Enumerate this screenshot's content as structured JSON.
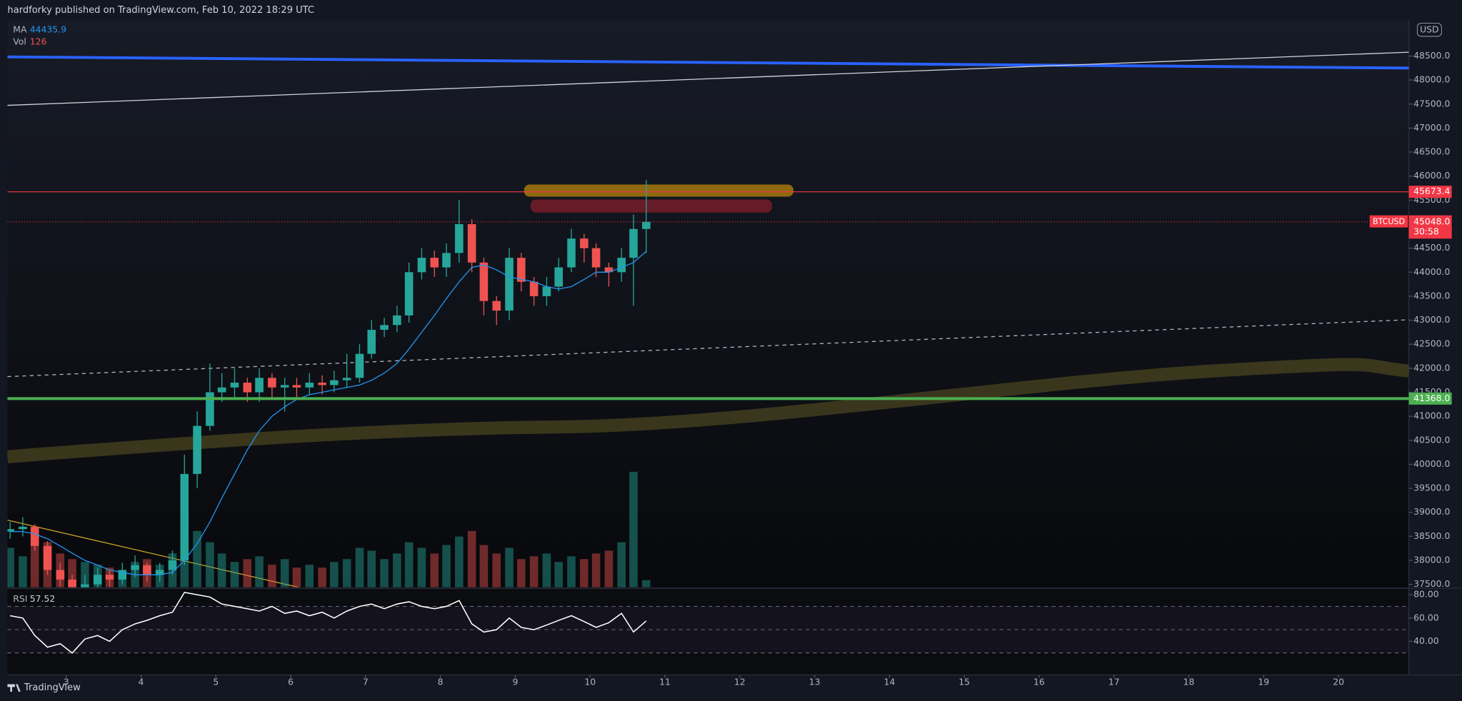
{
  "header": "hardforky published on TradingView.com, Feb 10, 2022 18:29 UTC",
  "footer": "TradingView",
  "chart_data": [
    {
      "type": "candlestick",
      "currency": "USD",
      "x": [
        2.25,
        2.42,
        2.58,
        2.75,
        2.92,
        3.08,
        3.25,
        3.42,
        3.58,
        3.75,
        3.92,
        4.08,
        4.25,
        4.42,
        4.58,
        4.75,
        4.92,
        5.08,
        5.25,
        5.42,
        5.58,
        5.75,
        5.92,
        6.08,
        6.25,
        6.42,
        6.58,
        6.75,
        6.92,
        7.08,
        7.25,
        7.42,
        7.58,
        7.75,
        7.92,
        8.08,
        8.25,
        8.42,
        8.58,
        8.75,
        8.92,
        9.08,
        9.25,
        9.42,
        9.58,
        9.75,
        9.92,
        10.08,
        10.25,
        10.42,
        10.58,
        10.75
      ],
      "open": [
        38600,
        38650,
        38700,
        38300,
        37800,
        37600,
        37400,
        37500,
        37700,
        37600,
        37800,
        37900,
        37700,
        37800,
        38000,
        39800,
        40800,
        41500,
        41600,
        41700,
        41500,
        41800,
        41600,
        41650,
        41600,
        41700,
        41650,
        41750,
        41800,
        42300,
        42800,
        42900,
        43100,
        44000,
        44300,
        44100,
        44400,
        45000,
        44200,
        43400,
        43200,
        44300,
        43800,
        43500,
        43700,
        44100,
        44700,
        44500,
        44100,
        44000,
        44300,
        44900
      ],
      "high": [
        38800,
        38900,
        38750,
        38400,
        37950,
        37700,
        37700,
        37850,
        37800,
        37950,
        38100,
        37950,
        37950,
        38200,
        40200,
        41100,
        42100,
        41900,
        42000,
        41800,
        42000,
        41900,
        41800,
        41800,
        41900,
        41850,
        41950,
        42300,
        42500,
        43000,
        43050,
        43300,
        44200,
        44500,
        44450,
        44600,
        45500,
        45100,
        44300,
        43500,
        44500,
        44400,
        43900,
        43900,
        44300,
        44900,
        44800,
        44600,
        44200,
        44500,
        45200,
        45920
      ],
      "low": [
        38450,
        38500,
        38200,
        37700,
        37450,
        37200,
        37250,
        37400,
        37450,
        37500,
        37650,
        37550,
        37550,
        37700,
        37900,
        39500,
        40700,
        41300,
        41400,
        41300,
        41300,
        41400,
        41100,
        41400,
        41450,
        41450,
        41500,
        41600,
        41700,
        42200,
        42650,
        42750,
        42950,
        43850,
        43900,
        43900,
        44200,
        44000,
        43100,
        42900,
        43000,
        43600,
        43300,
        43300,
        43600,
        44000,
        44200,
        43900,
        43700,
        43800,
        43300,
        44400
      ],
      "close": [
        38650,
        38700,
        38300,
        37800,
        37600,
        37400,
        37500,
        37700,
        37600,
        37800,
        37900,
        37700,
        37800,
        38000,
        39800,
        40800,
        41500,
        41600,
        41700,
        41500,
        41800,
        41600,
        41650,
        41600,
        41700,
        41650,
        41750,
        41800,
        42300,
        42800,
        42900,
        43100,
        44000,
        44300,
        44100,
        44400,
        45000,
        44200,
        43400,
        43200,
        44300,
        43800,
        43500,
        43700,
        44100,
        44700,
        44500,
        44100,
        44000,
        44300,
        44900,
        45048
      ],
      "up_color": "#26a69a",
      "down_color": "#ef5350",
      "ma": {
        "name": "MA",
        "color": "#2196f3",
        "values": [
          38600,
          38600,
          38550,
          38450,
          38300,
          38150,
          38000,
          37900,
          37800,
          37750,
          37700,
          37700,
          37700,
          37750,
          38000,
          38350,
          38800,
          39300,
          39800,
          40300,
          40700,
          41000,
          41200,
          41350,
          41450,
          41500,
          41550,
          41600,
          41650,
          41750,
          41900,
          42100,
          42400,
          42750,
          43100,
          43450,
          43800,
          44100,
          44150,
          44050,
          43900,
          43850,
          43800,
          43700,
          43650,
          43700,
          43850,
          44000,
          44000,
          44100,
          44200,
          44435.9
        ]
      },
      "xlim": [
        2.215,
        20.94
      ],
      "xticks": [
        3,
        4,
        5,
        6,
        7,
        8,
        9,
        10,
        11,
        12,
        13,
        14,
        15,
        16,
        17,
        18,
        19,
        20
      ],
      "ylim": [
        37440,
        49240
      ],
      "yticks": [
        {
          "value": 37500,
          "label": "37500.0"
        },
        {
          "value": 38000,
          "label": "38000.0"
        },
        {
          "value": 38500,
          "label": "38500.0"
        },
        {
          "value": 39000,
          "label": "39000.0"
        },
        {
          "value": 39500,
          "label": "39500.0"
        },
        {
          "value": 40000,
          "label": "40000.0"
        },
        {
          "value": 40500,
          "label": "40500.0"
        },
        {
          "value": 41000,
          "label": "41000.0"
        },
        {
          "value": 41500,
          "label": "41500.0"
        },
        {
          "value": 42000,
          "label": "42000.0"
        },
        {
          "value": 42500,
          "label": "42500.0"
        },
        {
          "value": 43000,
          "label": "43000.0"
        },
        {
          "value": 43500,
          "label": "43500.0"
        },
        {
          "value": 44000,
          "label": "44000.0"
        },
        {
          "value": 44500,
          "label": "44500.0"
        },
        {
          "value": 45000,
          "label": "45000.0"
        },
        {
          "value": 45500,
          "label": "45500.0"
        },
        {
          "value": 46000,
          "label": "46000.0"
        },
        {
          "value": 46500,
          "label": "46500.0"
        },
        {
          "value": 47000,
          "label": "47000.0"
        },
        {
          "value": 47500,
          "label": "47500.0"
        },
        {
          "value": 48000,
          "label": "48000.0"
        },
        {
          "value": 48500,
          "label": "48500.0"
        }
      ],
      "price_lines": [
        {
          "value": 45673.4,
          "color": "#f23645"
        },
        {
          "value": {
            "value": 41368,
            "label": "41368.0"
          },
          "color": "#4caf50"
        }
      ],
      "last_price": {
        "symbol": "BTCUSD",
        "value": {
          "value": 45048,
          "label": "45048.0"
        },
        "countdown": "30:58",
        "color": "#f23645"
      }
    },
    {
      "type": "bar",
      "name": "Vol",
      "ylim": [
        0,
        2400
      ],
      "values": [
        700,
        550,
        900,
        800,
        600,
        500,
        450,
        400,
        350,
        300,
        450,
        500,
        400,
        600,
        1300,
        1000,
        800,
        600,
        450,
        500,
        550,
        400,
        500,
        350,
        400,
        350,
        450,
        500,
        700,
        650,
        500,
        600,
        800,
        700,
        600,
        750,
        900,
        1000,
        750,
        600,
        700,
        500,
        550,
        600,
        450,
        550,
        500,
        600,
        650,
        800,
        2050,
        126
      ]
    },
    {
      "type": "line",
      "name": "RSI",
      "color": "#ffffff",
      "values": [
        62,
        60,
        45,
        35,
        38,
        30,
        42,
        45,
        40,
        50,
        55,
        58,
        62,
        65,
        82,
        80,
        78,
        72,
        70,
        68,
        66,
        70,
        64,
        66,
        62,
        65,
        60,
        66,
        70,
        72,
        68,
        72,
        74,
        70,
        68,
        70,
        75,
        55,
        48,
        50,
        60,
        52,
        50,
        54,
        58,
        62,
        57,
        52,
        56,
        64,
        48,
        57.52
      ],
      "ylim": [
        11.2,
        84.8
      ],
      "yticks": [
        {
          "value": 40,
          "label": "40.00"
        },
        {
          "value": 60,
          "label": "60.00"
        },
        {
          "value": 80,
          "label": "80.00"
        }
      ],
      "levels": [
        30,
        50,
        70
      ]
    }
  ]
}
